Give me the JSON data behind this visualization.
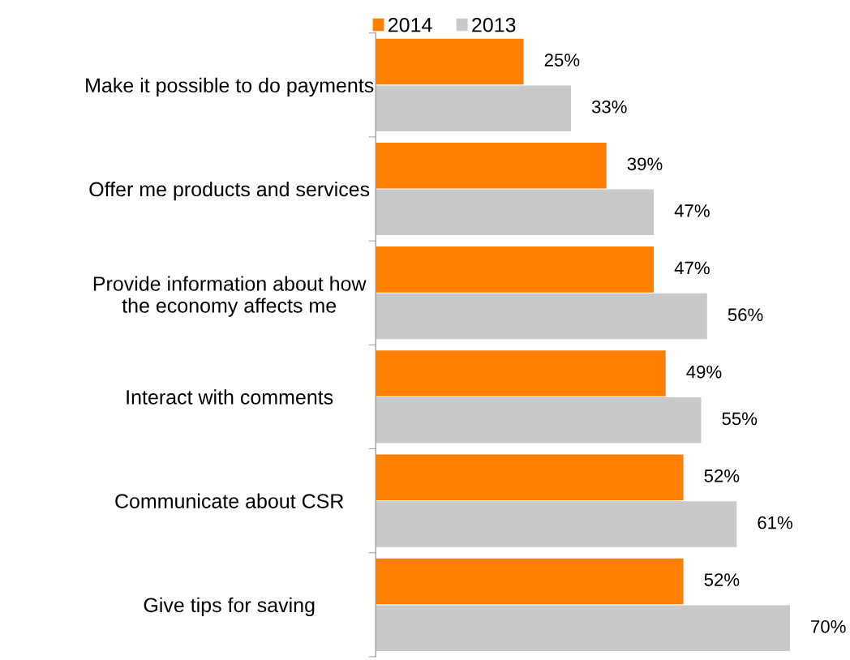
{
  "chart_data": {
    "type": "bar",
    "orientation": "horizontal",
    "categories": [
      "Make it possible to do payments",
      "Offer me products and services",
      "Provide information about how\nthe economy affects me",
      "Interact with comments",
      "Communicate about CSR",
      "Give tips for saving"
    ],
    "series": [
      {
        "name": "2014",
        "color": "#ff7f00",
        "values": [
          25,
          39,
          47,
          49,
          52,
          52
        ],
        "value_labels": [
          "25%",
          "39%",
          "47%",
          "49%",
          "52%",
          "52%"
        ]
      },
      {
        "name": "2013",
        "color": "#c9c9c9",
        "values": [
          33,
          47,
          56,
          55,
          61,
          70
        ],
        "value_labels": [
          "33%",
          "47%",
          "56%",
          "55%",
          "61%",
          "70%"
        ]
      }
    ],
    "legend": "top",
    "grid": false
  }
}
